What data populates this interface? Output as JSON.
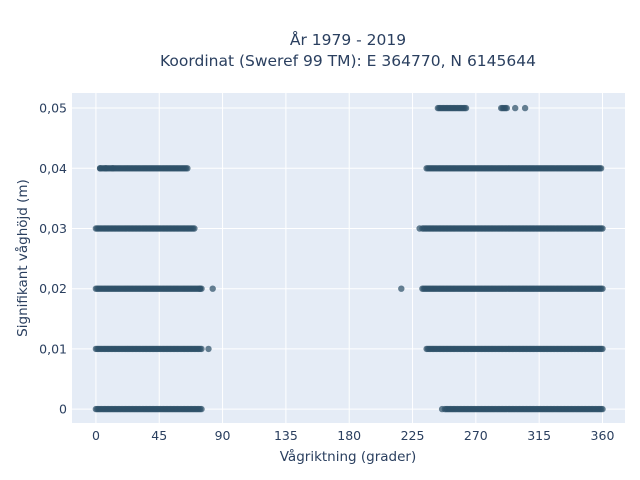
{
  "chart_data": {
    "type": "scatter",
    "title_lines": [
      "År 1979 - 2019",
      "Koordinat (Sweref 99 TM): E 364770, N 6145644"
    ],
    "xlabel": "Vågriktning (grader)",
    "ylabel": "Signifikant våghöjd (m)",
    "xlim": [
      -17,
      376
    ],
    "ylim": [
      -0.0023,
      0.0525
    ],
    "xticks": [
      0,
      45,
      90,
      135,
      180,
      225,
      270,
      315,
      360
    ],
    "xtick_labels": [
      "0",
      "45",
      "90",
      "135",
      "180",
      "225",
      "270",
      "315",
      "360"
    ],
    "yticks": [
      0,
      0.01,
      0.02,
      0.03,
      0.04,
      0.05
    ],
    "ytick_labels": [
      "0",
      "0,01",
      "0,02",
      "0,03",
      "0,04",
      "0,05"
    ],
    "grid": true,
    "marker_color": "#2e5068",
    "background_color": "#e5ecf6",
    "series": [
      {
        "values_by_height": [
          {
            "y": 0.0,
            "dense_ranges": [
              [
                0,
                75
              ],
              [
                248,
                360
              ]
            ],
            "isolated_x": [
              246
            ]
          },
          {
            "y": 0.01,
            "dense_ranges": [
              [
                0,
                75
              ],
              [
                235,
                360
              ]
            ],
            "isolated_x": [
              80
            ]
          },
          {
            "y": 0.02,
            "dense_ranges": [
              [
                0,
                75
              ],
              [
                232,
                360
              ]
            ],
            "isolated_x": [
              74,
              83,
              217
            ]
          },
          {
            "y": 0.03,
            "dense_ranges": [
              [
                0,
                70
              ],
              [
                232,
                360
              ]
            ],
            "isolated_x": [
              230
            ]
          },
          {
            "y": 0.04,
            "dense_ranges": [
              [
                3,
                65
              ],
              [
                235,
                359
              ]
            ],
            "isolated_x": [
              3,
              7,
              12
            ]
          },
          {
            "y": 0.05,
            "dense_ranges": [
              [
                243,
                263
              ],
              [
                288,
                292
              ]
            ],
            "isolated_x": [
              298,
              305
            ]
          }
        ]
      }
    ]
  }
}
